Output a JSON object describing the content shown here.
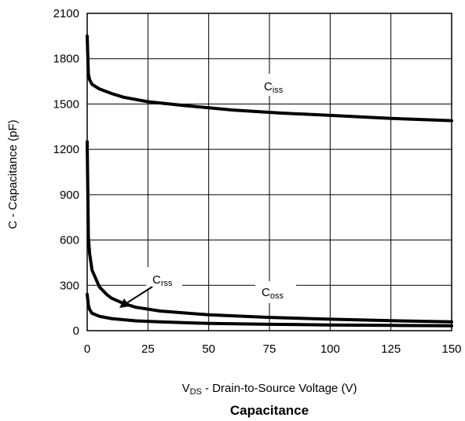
{
  "chart_data": {
    "type": "line",
    "title": "Capacitance",
    "xlabel": {
      "main": "V",
      "sub": "DS",
      "rest": " - Drain-to-Source Voltage (V)"
    },
    "ylabel": "C - Capacitance (pF)",
    "xlim": [
      0,
      150
    ],
    "ylim": [
      0,
      2100
    ],
    "x_ticks": [
      0,
      25,
      50,
      75,
      100,
      125,
      150
    ],
    "y_ticks": [
      0,
      300,
      600,
      900,
      1200,
      1500,
      1800,
      2100
    ],
    "grid": true,
    "legend": "none",
    "series": [
      {
        "name": "Ciss",
        "label_main": "C",
        "label_sub": "iss",
        "x": [
          0,
          0.5,
          1,
          2,
          5,
          10,
          15,
          25,
          40,
          60,
          80,
          100,
          125,
          150
        ],
        "values": [
          1950,
          1700,
          1660,
          1630,
          1600,
          1570,
          1545,
          1515,
          1490,
          1460,
          1440,
          1425,
          1405,
          1390
        ]
      },
      {
        "name": "Coss",
        "label_main": "C",
        "label_sub": "oss",
        "x": [
          0,
          0.5,
          1,
          2,
          5,
          8,
          10,
          15,
          20,
          30,
          50,
          75,
          100,
          125,
          150
        ],
        "values": [
          1250,
          620,
          510,
          400,
          290,
          240,
          215,
          180,
          155,
          130,
          105,
          88,
          76,
          66,
          58
        ]
      },
      {
        "name": "Crss",
        "label_main": "C",
        "label_sub": "rss",
        "x": [
          0,
          0.5,
          1,
          2,
          5,
          10,
          20,
          30,
          50,
          75,
          100,
          125,
          150
        ],
        "values": [
          240,
          170,
          140,
          115,
          95,
          80,
          65,
          58,
          48,
          42,
          38,
          35,
          32
        ]
      }
    ]
  },
  "annotations": {
    "crss_arrow": true
  }
}
